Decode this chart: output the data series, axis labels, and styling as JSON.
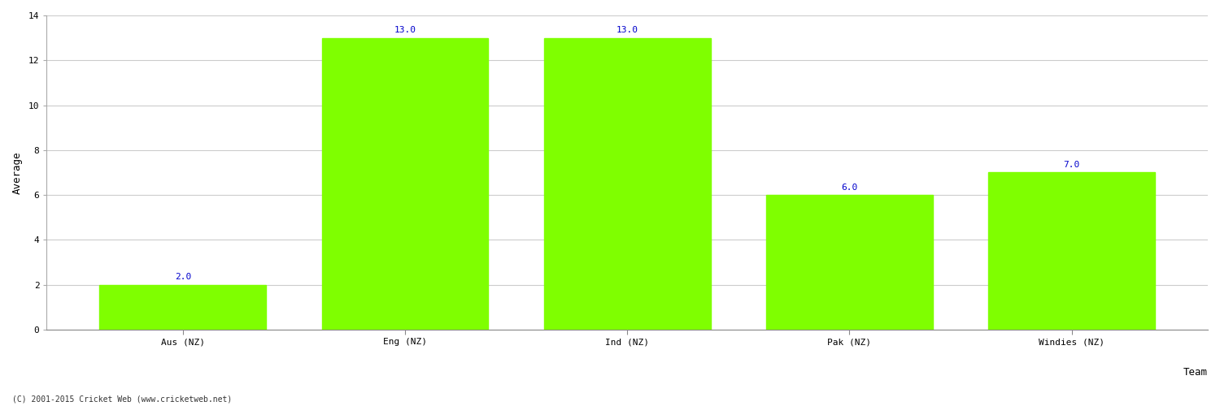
{
  "categories": [
    "Aus (NZ)",
    "Eng (NZ)",
    "Ind (NZ)",
    "Pak (NZ)",
    "Windies (NZ)"
  ],
  "values": [
    2.0,
    13.0,
    13.0,
    6.0,
    7.0
  ],
  "bar_color": "#7fff00",
  "label_color": "#0000cc",
  "xlabel": "Team",
  "ylabel": "Average",
  "ylim": [
    0,
    14
  ],
  "yticks": [
    0,
    2,
    4,
    6,
    8,
    10,
    12,
    14
  ],
  "background_color": "#ffffff",
  "grid_color": "#cccccc",
  "label_fontsize": 8,
  "axis_fontsize": 9,
  "tick_fontsize": 8,
  "footer_text": "(C) 2001-2015 Cricket Web (www.cricketweb.net)",
  "bar_width": 0.75
}
